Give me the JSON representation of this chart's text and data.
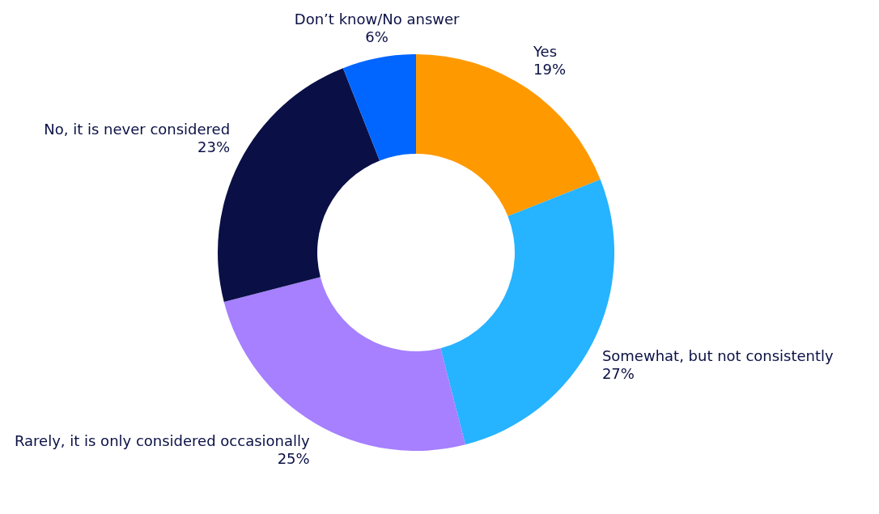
{
  "chart_data": {
    "type": "donut",
    "categories": [
      "Yes",
      "Somewhat, but not consistently",
      "Rarely, it is only considered occasionally",
      "No, it is never considered",
      "Don’t know/No answer"
    ],
    "values": [
      19,
      27,
      25,
      23,
      6
    ],
    "value_labels": [
      "19%",
      "27%",
      "25%",
      "23%",
      "6%"
    ],
    "colors": [
      "#ff9900",
      "#26b3ff",
      "#a680ff",
      "#0a1045",
      "#0066ff"
    ]
  }
}
